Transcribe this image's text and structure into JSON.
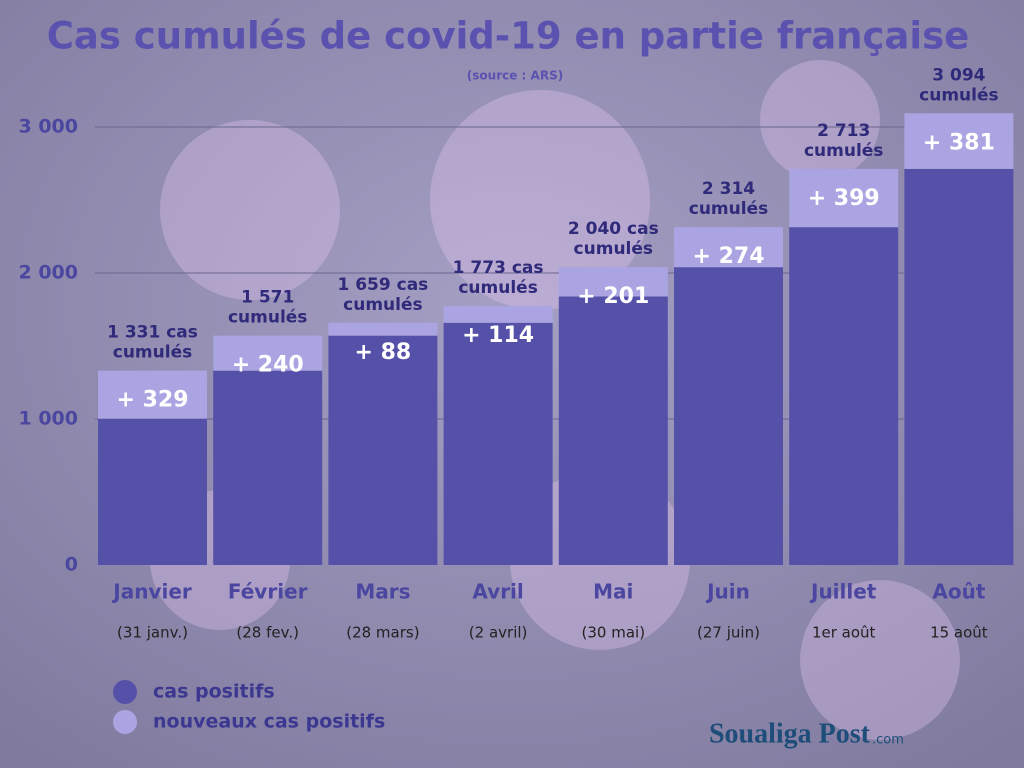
{
  "chart_data": {
    "type": "stacked-bar",
    "title": "Cas cumulés de covid-19 en partie française",
    "subtitle": "(source : ARS)",
    "categories": [
      "Janvier",
      "Février",
      "Mars",
      "Avril",
      "Mai",
      "Juin",
      "Juillet",
      "Août"
    ],
    "category_notes": [
      "(31 janv.)",
      "(28 fev.)",
      "(28 mars)",
      "(2 avril)",
      "(30 mai)",
      "(27 juin)",
      "1er août",
      "15 août"
    ],
    "series": [
      {
        "name": "cas positifs",
        "color": "#5551a8",
        "values": [
          1002,
          1331,
          1571,
          1659,
          1839,
          2040,
          2314,
          2713
        ]
      },
      {
        "name": "nouveaux cas positifs",
        "color": "#aaa5e2",
        "values": [
          329,
          240,
          88,
          114,
          201,
          274,
          399,
          381
        ],
        "value_labels": [
          "+ 329",
          "+ 240",
          "+ 88",
          "+ 114",
          "+ 201",
          "+ 274",
          "+ 399",
          "+ 381"
        ]
      }
    ],
    "totals_labels": [
      [
        "1 331 cas",
        "cumulés"
      ],
      [
        "1 571",
        "cumulés"
      ],
      [
        "1 659 cas",
        "cumulés"
      ],
      [
        "1 773 cas",
        "cumulés"
      ],
      [
        "2 040 cas",
        "cumulés"
      ],
      [
        "2 314",
        "cumulés"
      ],
      [
        "2 713",
        "cumulés"
      ],
      [
        "3 094",
        "cumulés"
      ]
    ],
    "ylim": [
      0,
      3100
    ],
    "yticks": [
      0,
      {
        "value": 1000,
        "label": "1 000"
      },
      {
        "value": 2000,
        "label": "2 000"
      },
      {
        "value": 3000,
        "label": "3 000"
      }
    ],
    "grid": true
  },
  "logo": {
    "name": "Soualiga Post",
    "suffix": ".com"
  }
}
